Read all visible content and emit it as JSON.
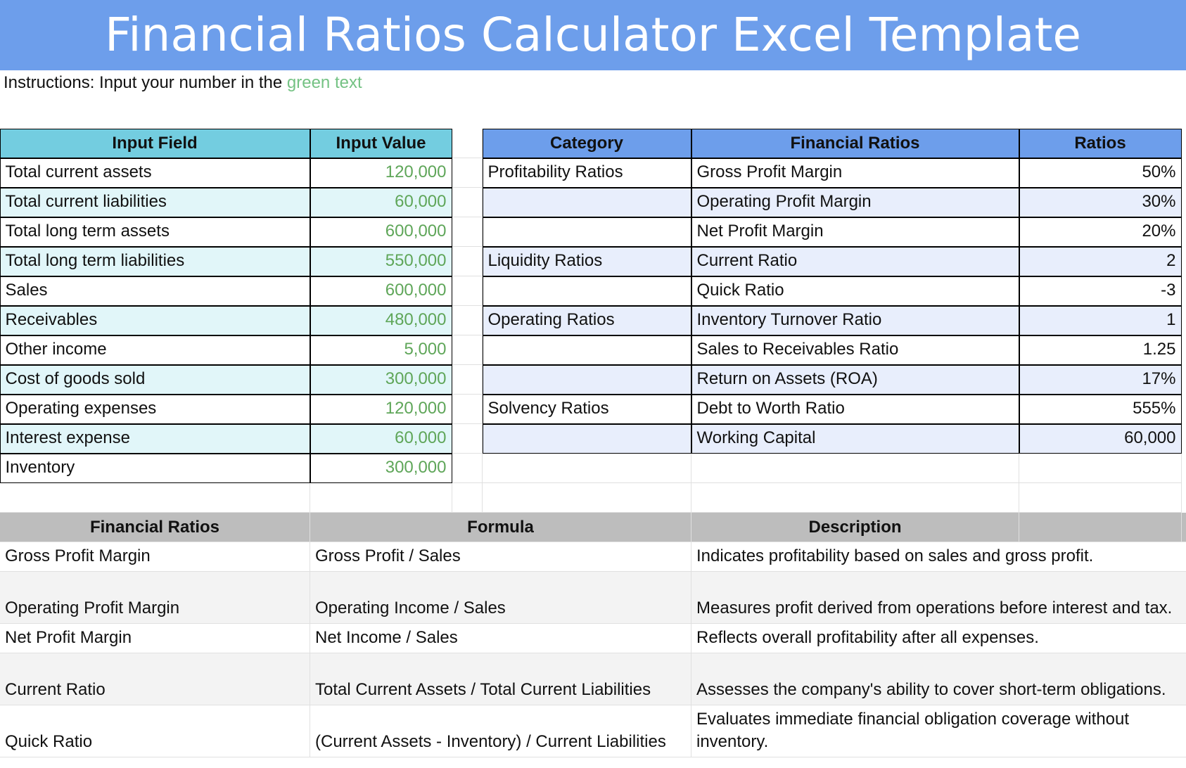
{
  "header": {
    "title": "Financial Ratios Calculator Excel Template"
  },
  "instructions": {
    "text": "Instructions: Input your number in the",
    "highlight": "green text"
  },
  "inputs": {
    "columns": [
      "Input Field",
      "Input Value"
    ],
    "rows": [
      [
        "Total current assets",
        "120,000"
      ],
      [
        "Total current liabilities",
        "60,000"
      ],
      [
        "Total long term assets",
        "600,000"
      ],
      [
        "Total long term liabilities",
        "550,000"
      ],
      [
        "Sales",
        "600,000"
      ],
      [
        "Receivables",
        "480,000"
      ],
      [
        "Other income",
        "5,000"
      ],
      [
        "Cost of goods sold",
        "300,000"
      ],
      [
        "Operating expenses",
        "120,000"
      ],
      [
        "Interest expense",
        "60,000"
      ],
      [
        "Inventory",
        "300,000"
      ]
    ]
  },
  "ratios": {
    "columns": [
      "Category",
      "Financial Ratios",
      "Ratios"
    ],
    "rows": [
      [
        "Profitability Ratios",
        "Gross Profit Margin",
        "50%"
      ],
      [
        null,
        "Operating Profit Margin",
        "30%"
      ],
      [
        null,
        "Net Profit Margin",
        "20%"
      ],
      [
        "Liquidity Ratios",
        "Current Ratio",
        "2"
      ],
      [
        null,
        "Quick Ratio",
        "-3"
      ],
      [
        "Operating Ratios",
        "Inventory Turnover Ratio",
        "1"
      ],
      [
        null,
        "Sales to Receivables Ratio",
        "1.25"
      ],
      [
        null,
        "Return on Assets (ROA)",
        "17%"
      ],
      [
        "Solvency Ratios",
        "Debt to Worth Ratio",
        "555%"
      ],
      [
        null,
        "Working Capital",
        "60,000"
      ]
    ]
  },
  "reference": {
    "columns": [
      "Financial Ratios",
      "Formula",
      "Description"
    ],
    "rows": [
      [
        "Gross Profit Margin",
        "Gross Profit / Sales",
        "Indicates profitability based on sales and gross profit."
      ],
      [
        "Operating Profit Margin",
        "Operating Income / Sales",
        "Measures profit derived from operations before interest and tax."
      ],
      [
        "Net Profit Margin",
        "Net Income / Sales",
        "Reflects overall profitability after all expenses."
      ],
      [
        "Current Ratio",
        "Total Current Assets / Total Current Liabilities",
        "Assesses the company's ability to cover short-term obligations."
      ],
      [
        "Quick Ratio",
        "(Current Assets - Inventory) / Current Liabilities",
        "Evaluates immediate financial obligation coverage without inventory."
      ]
    ]
  }
}
